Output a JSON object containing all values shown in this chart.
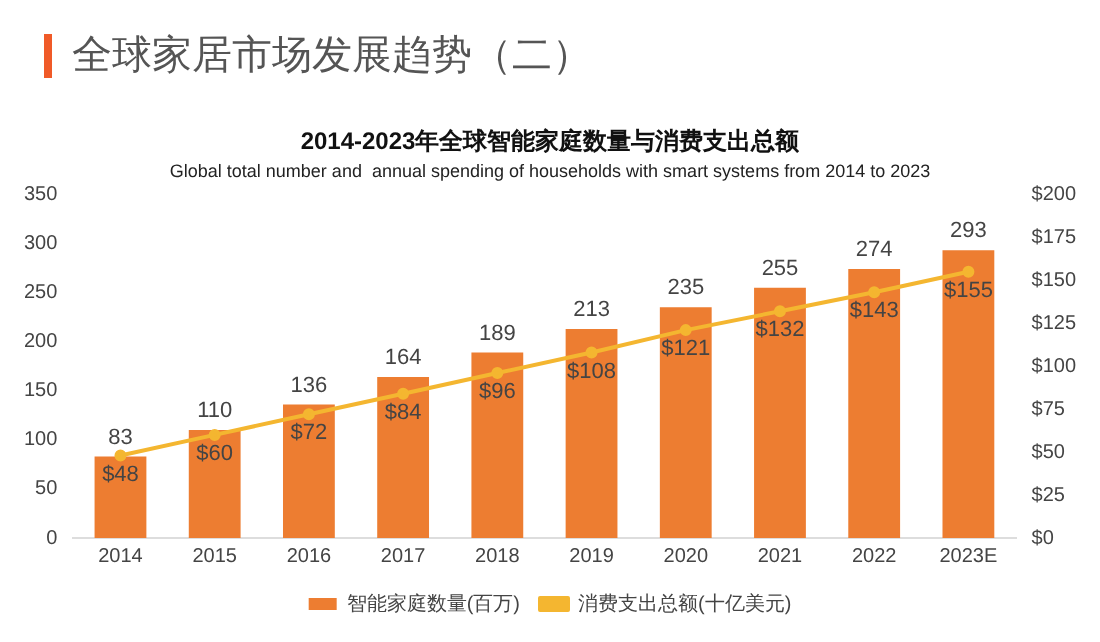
{
  "chart_data": {
    "type": "bar",
    "title": "2014-2023年全球智能家庭数量与消费支出总额",
    "subtitle": "Global total number and  annual spending of households with smart systems from 2014 to 2023",
    "annotations": [
      "全球家居市场发展趋势（二）"
    ],
    "categories": [
      "2014",
      "2015",
      "2016",
      "2017",
      "2018",
      "2019",
      "2020",
      "2021",
      "2022",
      "2023E"
    ],
    "series": [
      {
        "name": "智能家庭数量(百万)",
        "color": "#ed7d31",
        "values": [
          83,
          110,
          136,
          164,
          189,
          213,
          235,
          255,
          274,
          293
        ],
        "value_labels": [
          "83",
          "110",
          "136",
          "164",
          "189",
          "213",
          "235",
          "255",
          "274",
          "293"
        ]
      },
      {
        "name": "消费支出总额(十亿美元)",
        "type": "line",
        "axis": "y2",
        "color": "#f4b630",
        "marker": "circle",
        "values": [
          48,
          60,
          72,
          84,
          96,
          108,
          121,
          132,
          143,
          155
        ],
        "value_labels": [
          "$48",
          "$60",
          "$72",
          "$84",
          "$96",
          "$108",
          "$121",
          "$132",
          "$143",
          "$155"
        ]
      }
    ],
    "ylim": [
      0,
      350
    ],
    "yticks": [
      0,
      50,
      100,
      150,
      200,
      250,
      300,
      350
    ],
    "y2lim": [
      0,
      200
    ],
    "y2ticks": [
      {
        "value": 0,
        "label": "$0"
      },
      {
        "value": 25,
        "label": "$25"
      },
      {
        "value": 50,
        "label": "$50"
      },
      {
        "value": 75,
        "label": "$75"
      },
      {
        "value": 100,
        "label": "$100"
      },
      {
        "value": 125,
        "label": "$125"
      },
      {
        "value": 150,
        "label": "$150"
      },
      {
        "value": 175,
        "label": "$175"
      },
      {
        "value": 200,
        "label": "$200"
      }
    ],
    "grid": false,
    "legend": "bottom"
  }
}
